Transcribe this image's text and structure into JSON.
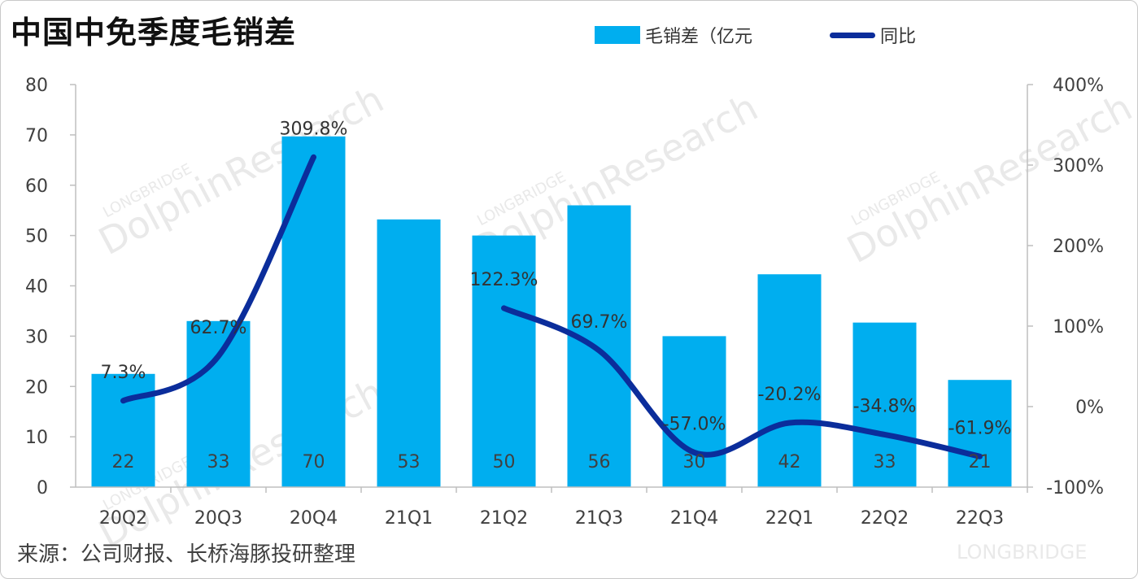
{
  "title": "中国中免季度毛销差",
  "source": "来源：公司财报、长桥海豚投研整理",
  "watermark": {
    "brand_small": "LONGBRIDGE",
    "brand_main": "DolphinResearch",
    "corner": "LONGBRIDGE"
  },
  "colors": {
    "bar": "#00AEEF",
    "line": "#0B2D9B"
  },
  "chart_data": {
    "type": "bar",
    "categories": [
      "20Q2",
      "20Q3",
      "20Q4",
      "21Q1",
      "21Q2",
      "21Q3",
      "21Q4",
      "22Q1",
      "22Q2",
      "22Q3"
    ],
    "series": [
      {
        "name": "毛销差（亿元",
        "type": "bar",
        "axis": "left",
        "values": [
          22.5,
          33,
          69.7,
          53.2,
          50,
          56,
          30,
          42.3,
          32.7,
          21.3
        ],
        "labels": [
          "22",
          "33",
          "70",
          "53",
          "50",
          "56",
          "30",
          "42",
          "33",
          "21"
        ]
      },
      {
        "name": "同比",
        "type": "line",
        "axis": "right",
        "values": [
          7.3,
          62.7,
          309.8,
          null,
          122.3,
          69.7,
          -57.0,
          -20.2,
          -34.8,
          -61.9
        ],
        "labels": [
          "7.3%",
          "62.7%",
          "309.8%",
          "",
          "122.3%",
          "69.7%",
          "-57.0%",
          "-20.2%",
          "-34.8%",
          "-61.9%"
        ]
      }
    ],
    "y_left": {
      "ylim": [
        0,
        80
      ],
      "ticks": [
        "0",
        "10",
        "20",
        "30",
        "40",
        "50",
        "60",
        "70",
        "80"
      ]
    },
    "y_right": {
      "ylim": [
        -100,
        400
      ],
      "ticks": [
        "-100%",
        "0%",
        "100%",
        "200%",
        "300%",
        "400%"
      ]
    },
    "legend": "top-right",
    "grid": false
  }
}
